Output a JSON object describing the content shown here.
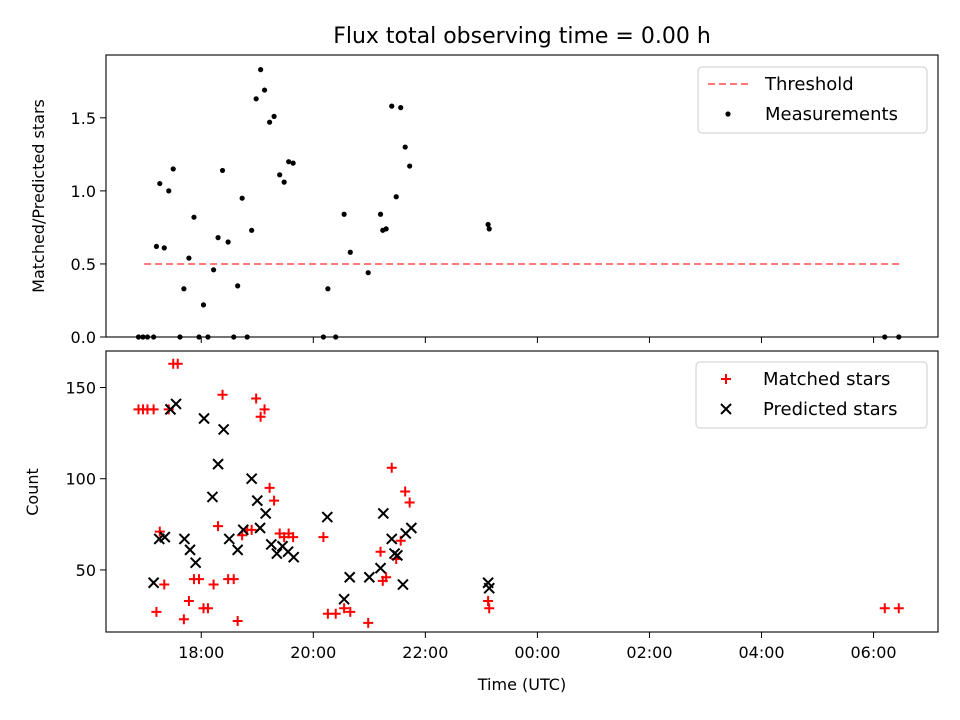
{
  "chart_data": [
    {
      "type": "scatter",
      "title": "Flux total observing time = 0.00 h",
      "xlabel": "",
      "ylabel": "Matched/Predicted stars",
      "xlim": [
        16.3,
        31.15
      ],
      "ylim": [
        0,
        1.93
      ],
      "yticks": [
        0,
        0.5,
        1.0,
        1.5
      ],
      "ytick_labels": [
        "0.0",
        "0.5",
        "1.0",
        "1.5"
      ],
      "xticks": [
        18,
        20,
        22,
        24,
        26,
        28,
        30
      ],
      "xtick_labels": [
        "",
        "",
        "",
        "",
        "",
        "",
        ""
      ],
      "grid": false,
      "legend": "top-right",
      "series": [
        {
          "name": "Threshold",
          "kind": "line",
          "style": "dashed",
          "color": "#ff7777",
          "x": [
            16.98,
            30.48
          ],
          "y": [
            0.5,
            0.5
          ]
        },
        {
          "name": "Measurements",
          "kind": "scatter",
          "color": "#000000",
          "points": [
            [
              16.88,
              0.0
            ],
            [
              16.96,
              0.0
            ],
            [
              17.04,
              0.0
            ],
            [
              17.15,
              0.0
            ],
            [
              17.2,
              0.62
            ],
            [
              17.26,
              1.05
            ],
            [
              17.34,
              0.61
            ],
            [
              17.42,
              1.0
            ],
            [
              17.5,
              1.15
            ],
            [
              17.62,
              0.0
            ],
            [
              17.69,
              0.33
            ],
            [
              17.78,
              0.54
            ],
            [
              17.87,
              0.82
            ],
            [
              17.96,
              0.0
            ],
            [
              18.04,
              0.22
            ],
            [
              18.12,
              0.0
            ],
            [
              18.22,
              0.46
            ],
            [
              18.3,
              0.68
            ],
            [
              18.38,
              1.14
            ],
            [
              18.48,
              0.65
            ],
            [
              18.58,
              0.0
            ],
            [
              18.65,
              0.35
            ],
            [
              18.73,
              0.95
            ],
            [
              18.82,
              0.0
            ],
            [
              18.9,
              0.73
            ],
            [
              18.98,
              1.63
            ],
            [
              19.06,
              1.83
            ],
            [
              19.13,
              1.69
            ],
            [
              19.22,
              1.47
            ],
            [
              19.3,
              1.51
            ],
            [
              19.4,
              1.11
            ],
            [
              19.48,
              1.06
            ],
            [
              19.56,
              1.2
            ],
            [
              19.64,
              1.19
            ],
            [
              20.18,
              0.0
            ],
            [
              20.26,
              0.33
            ],
            [
              20.4,
              0.0
            ],
            [
              20.55,
              0.84
            ],
            [
              20.66,
              0.58
            ],
            [
              20.98,
              0.44
            ],
            [
              21.2,
              0.84
            ],
            [
              21.24,
              0.73
            ],
            [
              21.3,
              0.74
            ],
            [
              21.4,
              1.58
            ],
            [
              21.48,
              0.96
            ],
            [
              21.56,
              1.57
            ],
            [
              21.64,
              1.3
            ],
            [
              21.72,
              1.17
            ],
            [
              23.12,
              0.77
            ],
            [
              23.14,
              0.74
            ],
            [
              30.2,
              0.0
            ],
            [
              30.45,
              0.0
            ]
          ]
        }
      ]
    },
    {
      "type": "scatter",
      "title": "",
      "xlabel": "Time (UTC)",
      "ylabel": "Count",
      "xlim": [
        16.3,
        31.15
      ],
      "ylim": [
        16,
        170
      ],
      "yticks": [
        50,
        100,
        150
      ],
      "ytick_labels": [
        "50",
        "100",
        "150"
      ],
      "xticks": [
        18,
        20,
        22,
        24,
        26,
        28,
        30
      ],
      "xtick_labels": [
        "18:00",
        "20:00",
        "22:00",
        "00:00",
        "02:00",
        "04:00",
        "06:00"
      ],
      "grid": false,
      "legend": "top-right",
      "series": [
        {
          "name": "Matched stars",
          "kind": "scatter",
          "marker": "plus",
          "color": "#ff0000",
          "points": [
            [
              16.88,
              138
            ],
            [
              16.96,
              138
            ],
            [
              17.04,
              138
            ],
            [
              17.15,
              138
            ],
            [
              17.2,
              27
            ],
            [
              17.26,
              71
            ],
            [
              17.34,
              42
            ],
            [
              17.42,
              138
            ],
            [
              17.5,
              163
            ],
            [
              17.58,
              163
            ],
            [
              17.69,
              23
            ],
            [
              17.78,
              33
            ],
            [
              17.87,
              45
            ],
            [
              17.96,
              45
            ],
            [
              18.04,
              29
            ],
            [
              18.12,
              29
            ],
            [
              18.22,
              42
            ],
            [
              18.3,
              74
            ],
            [
              18.38,
              146
            ],
            [
              18.48,
              45
            ],
            [
              18.58,
              45
            ],
            [
              18.65,
              22
            ],
            [
              18.73,
              69
            ],
            [
              18.82,
              72
            ],
            [
              18.9,
              72
            ],
            [
              18.98,
              144
            ],
            [
              19.06,
              134
            ],
            [
              19.13,
              138
            ],
            [
              19.22,
              95
            ],
            [
              19.3,
              88
            ],
            [
              19.4,
              70
            ],
            [
              19.48,
              68
            ],
            [
              19.56,
              70
            ],
            [
              19.64,
              68
            ],
            [
              20.18,
              68
            ],
            [
              20.26,
              26
            ],
            [
              20.4,
              26
            ],
            [
              20.55,
              29
            ],
            [
              20.66,
              27
            ],
            [
              20.98,
              21
            ],
            [
              21.2,
              60
            ],
            [
              21.24,
              44
            ],
            [
              21.3,
              46
            ],
            [
              21.4,
              106
            ],
            [
              21.48,
              56
            ],
            [
              21.56,
              66
            ],
            [
              21.64,
              93
            ],
            [
              21.72,
              87
            ],
            [
              23.12,
              33
            ],
            [
              23.14,
              29
            ],
            [
              30.2,
              29
            ],
            [
              30.45,
              29
            ]
          ]
        },
        {
          "name": "Predicted stars",
          "kind": "scatter",
          "marker": "x",
          "color": "#000000",
          "points": [
            [
              17.15,
              43
            ],
            [
              17.25,
              67
            ],
            [
              17.35,
              68
            ],
            [
              17.45,
              138
            ],
            [
              17.55,
              141
            ],
            [
              17.7,
              67
            ],
            [
              17.8,
              61
            ],
            [
              17.9,
              54
            ],
            [
              18.05,
              133
            ],
            [
              18.2,
              90
            ],
            [
              18.3,
              108
            ],
            [
              18.4,
              127
            ],
            [
              18.5,
              67
            ],
            [
              18.65,
              61
            ],
            [
              18.75,
              72
            ],
            [
              18.9,
              100
            ],
            [
              19.0,
              88
            ],
            [
              19.05,
              73
            ],
            [
              19.15,
              81
            ],
            [
              19.25,
              64
            ],
            [
              19.35,
              59
            ],
            [
              19.45,
              63
            ],
            [
              19.55,
              60
            ],
            [
              19.65,
              57
            ],
            [
              20.25,
              79
            ],
            [
              20.55,
              34
            ],
            [
              20.65,
              46
            ],
            [
              21.0,
              46
            ],
            [
              21.2,
              51
            ],
            [
              21.25,
              81
            ],
            [
              21.4,
              67
            ],
            [
              21.45,
              59
            ],
            [
              21.5,
              58
            ],
            [
              21.6,
              42
            ],
            [
              21.65,
              70
            ],
            [
              21.75,
              73
            ],
            [
              23.12,
              43
            ],
            [
              23.14,
              40
            ]
          ]
        }
      ]
    }
  ]
}
